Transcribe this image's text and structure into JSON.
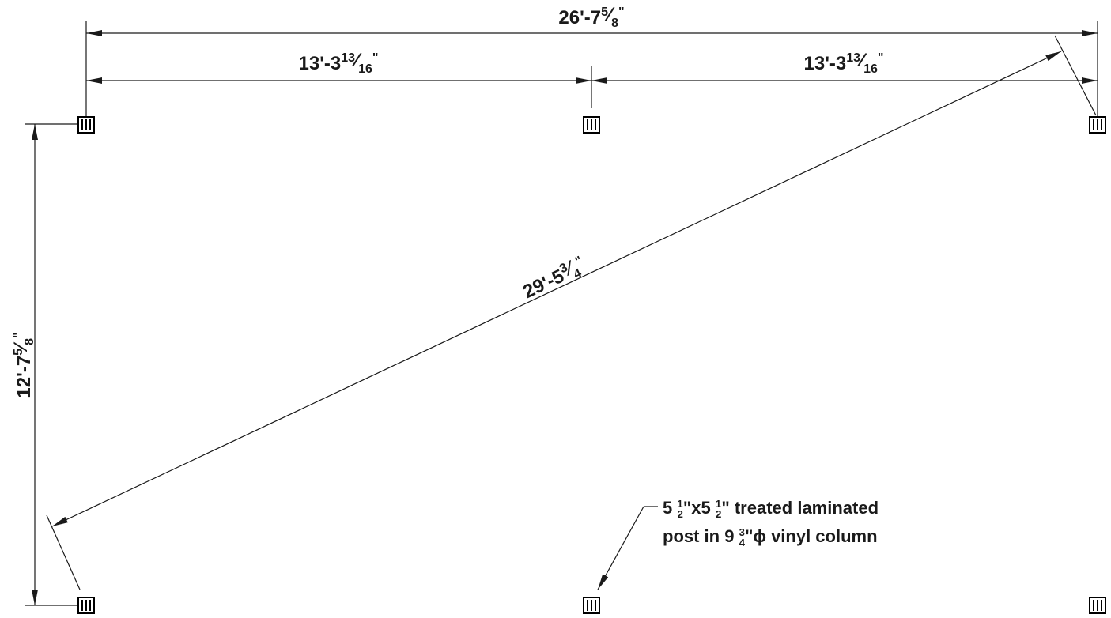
{
  "dimensions": {
    "overall_width": {
      "feet": "26'-7",
      "num": "5",
      "den": "8",
      "unit": "\""
    },
    "left_span": {
      "feet": "13'-3",
      "num": "13",
      "den": "16",
      "unit": "\""
    },
    "right_span": {
      "feet": "13'-3",
      "num": "13",
      "den": "16",
      "unit": "\""
    },
    "diagonal": {
      "feet": "29'-5",
      "num": "3",
      "den": "4",
      "unit": "\""
    },
    "depth": {
      "feet": "12'-7",
      "num": "5",
      "den": "8",
      "unit": "\""
    }
  },
  "callout": {
    "line1_a": "5 ",
    "line1_frac1_num": "1",
    "line1_frac1_den": "2",
    "line1_b": "\"x5 ",
    "line1_frac2_num": "1",
    "line1_frac2_den": "2",
    "line1_c": "\" treated laminated",
    "line2_a": "post in 9 ",
    "line2_frac_num": "3",
    "line2_frac_den": "4",
    "line2_b": "\"ϕ vinyl column"
  },
  "posts": [
    "post-top-left",
    "post-top-middle",
    "post-top-right",
    "post-bottom-left",
    "post-bottom-middle",
    "post-bottom-right"
  ]
}
